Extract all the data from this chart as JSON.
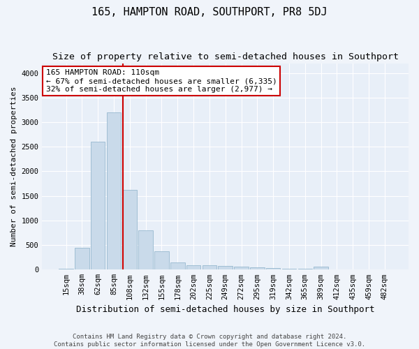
{
  "title": "165, HAMPTON ROAD, SOUTHPORT, PR8 5DJ",
  "subtitle": "Size of property relative to semi-detached houses in Southport",
  "xlabel": "Distribution of semi-detached houses by size in Southport",
  "ylabel": "Number of semi-detached properties",
  "categories": [
    "15sqm",
    "38sqm",
    "62sqm",
    "85sqm",
    "108sqm",
    "132sqm",
    "155sqm",
    "178sqm",
    "202sqm",
    "225sqm",
    "249sqm",
    "272sqm",
    "295sqm",
    "319sqm",
    "342sqm",
    "365sqm",
    "389sqm",
    "412sqm",
    "435sqm",
    "459sqm",
    "482sqm"
  ],
  "values": [
    20,
    450,
    2600,
    3200,
    1620,
    800,
    380,
    150,
    90,
    90,
    70,
    55,
    50,
    30,
    20,
    20,
    55,
    0,
    0,
    0,
    0
  ],
  "bar_color": "#c9daea",
  "bar_edge_color": "#8aafc8",
  "vline_x_index": 4,
  "vline_color": "#cc0000",
  "annotation_text": "165 HAMPTON ROAD: 110sqm\n← 67% of semi-detached houses are smaller (6,335)\n32% of semi-detached houses are larger (2,977) →",
  "annotation_box_color": "#ffffff",
  "annotation_box_edge": "#cc0000",
  "ylim": [
    0,
    4200
  ],
  "yticks": [
    0,
    500,
    1000,
    1500,
    2000,
    2500,
    3000,
    3500,
    4000
  ],
  "footer": "Contains HM Land Registry data © Crown copyright and database right 2024.\nContains public sector information licensed under the Open Government Licence v3.0.",
  "bg_color": "#f0f4fa",
  "plot_bg_color": "#e8eff8",
  "grid_color": "#ffffff",
  "title_fontsize": 11,
  "subtitle_fontsize": 9.5,
  "xlabel_fontsize": 9,
  "ylabel_fontsize": 8,
  "tick_fontsize": 7.5,
  "footer_fontsize": 6.5,
  "annotation_fontsize": 8
}
